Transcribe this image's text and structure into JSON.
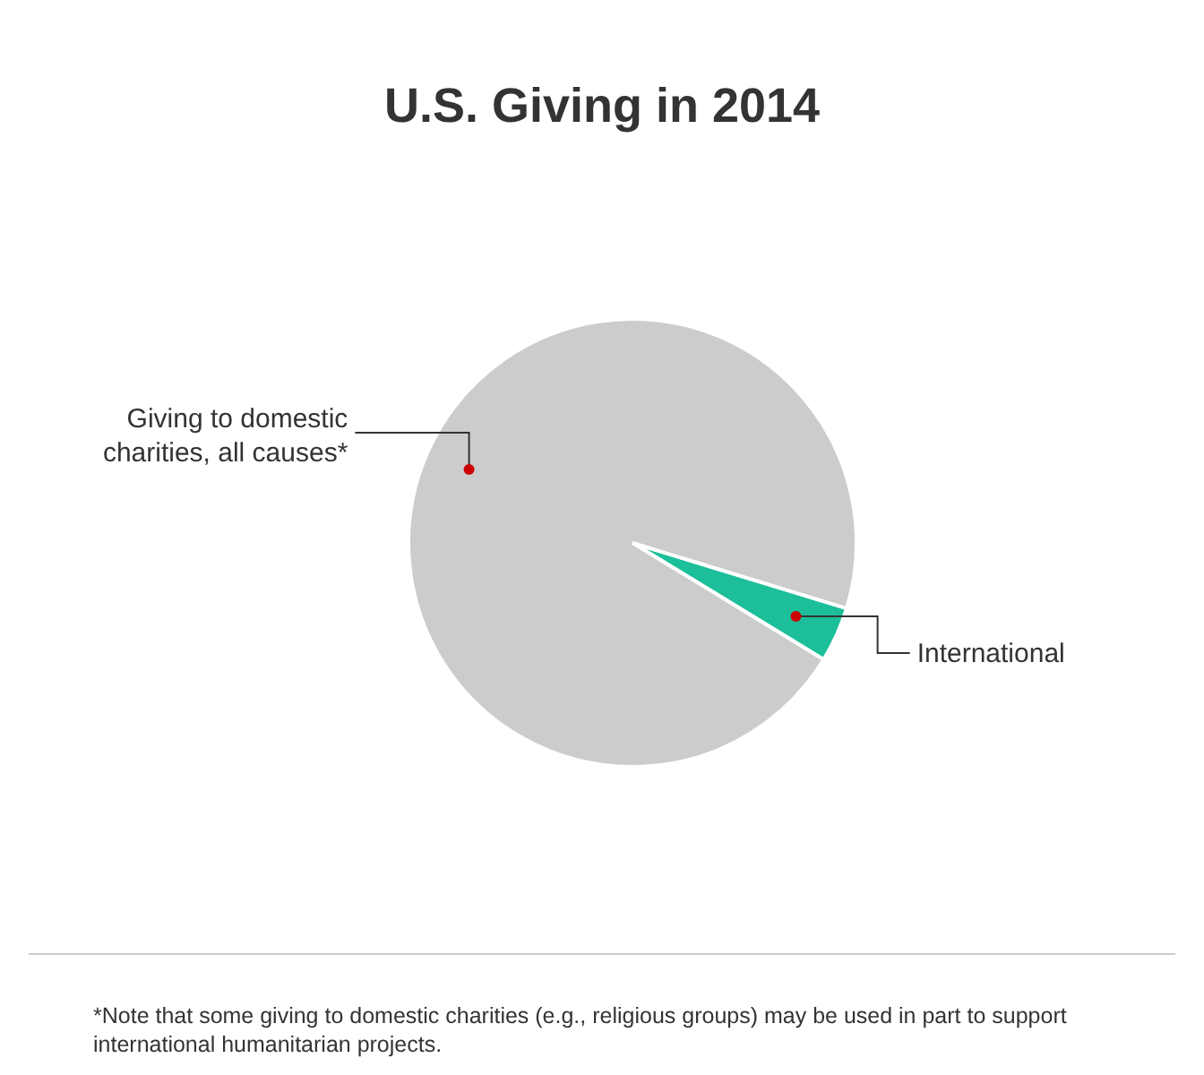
{
  "chart_data": {
    "type": "pie",
    "title": "U.S. Giving in 2014",
    "categories": [
      "International",
      "Giving to domestic charities, all causes*"
    ],
    "values": [
      4,
      96
    ],
    "colors": [
      "#1dbf9a",
      "#cccccc"
    ],
    "annotations": [
      "*Note that some giving to domestic charities (e.g., religious groups) may be used in part to support international humanitarian projects."
    ]
  }
}
